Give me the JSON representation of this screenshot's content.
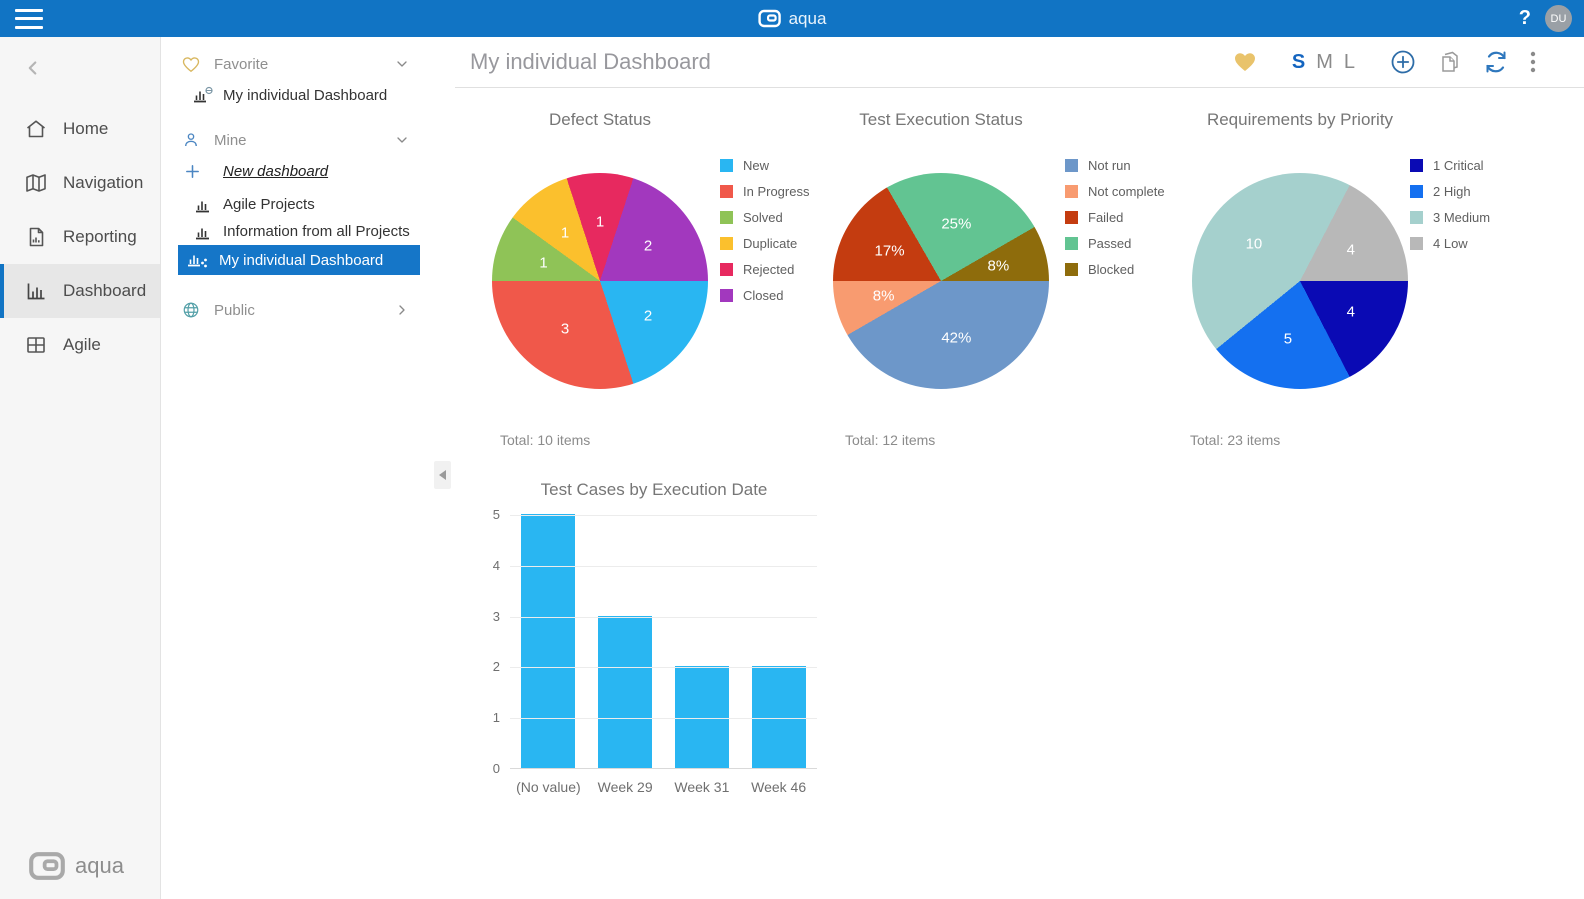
{
  "topbar": {
    "brand": "aqua",
    "help": "?",
    "avatar": "DU"
  },
  "sidebar": {
    "items": [
      {
        "label": "Home"
      },
      {
        "label": "Navigation"
      },
      {
        "label": "Reporting"
      },
      {
        "label": "Dashboard",
        "selected": true
      },
      {
        "label": "Agile"
      }
    ],
    "footer_brand": "aqua"
  },
  "panel": {
    "favorite": {
      "label": "Favorite",
      "items": [
        {
          "label": "My individual Dashboard"
        }
      ]
    },
    "mine": {
      "label": "Mine",
      "new_dashboard": "New dashboard",
      "items": [
        {
          "label": "Agile Projects"
        },
        {
          "label": "Information from all Projects"
        },
        {
          "label": "My individual Dashboard",
          "selected": true
        }
      ]
    },
    "public": {
      "label": "Public"
    }
  },
  "header": {
    "title": "My individual Dashboard",
    "sizes": [
      "S",
      "M",
      "L"
    ],
    "active_size": "S"
  },
  "colors": {
    "topbar": "#1174C4",
    "selection": "#1576C8",
    "favorite_heart": "#E9C36B",
    "bar": "#29B6F2"
  },
  "chart_data": [
    {
      "type": "pie",
      "title": "Defect Status",
      "total_label": "Total: 10 items",
      "legend_position": "right",
      "series": [
        {
          "name": "New",
          "value": 2,
          "label": "2",
          "color": "#29B6F2"
        },
        {
          "name": "In Progress",
          "value": 3,
          "label": "3",
          "color": "#F0584A"
        },
        {
          "name": "Solved",
          "value": 1,
          "label": "1",
          "color": "#8FC357"
        },
        {
          "name": "Duplicate",
          "value": 1,
          "label": "1",
          "color": "#FBC02D"
        },
        {
          "name": "Rejected",
          "value": 1,
          "label": "1",
          "color": "#E7295F"
        },
        {
          "name": "Closed",
          "value": 2,
          "label": "2",
          "color": "#A238BE"
        }
      ]
    },
    {
      "type": "pie",
      "title": "Test Execution Status",
      "total_label": "Total: 12 items",
      "legend_position": "right",
      "series": [
        {
          "name": "Not run",
          "value": 5,
          "label": "42%",
          "color": "#6D97C9"
        },
        {
          "name": "Not complete",
          "value": 1,
          "label": "8%",
          "color": "#F89B70"
        },
        {
          "name": "Failed",
          "value": 2,
          "label": "17%",
          "color": "#C43C10"
        },
        {
          "name": "Passed",
          "value": 3,
          "label": "25%",
          "color": "#62C492"
        },
        {
          "name": "Blocked",
          "value": 1,
          "label": "8%",
          "color": "#8E6C0C"
        }
      ]
    },
    {
      "type": "pie",
      "title": "Requirements by Priority",
      "total_label": "Total: 23 items",
      "legend_position": "right",
      "series": [
        {
          "name": "1 Critical",
          "value": 4,
          "label": "4",
          "color": "#0A0AB4"
        },
        {
          "name": "2 High",
          "value": 5,
          "label": "5",
          "color": "#1470F0"
        },
        {
          "name": "3 Medium",
          "value": 10,
          "label": "10",
          "color": "#A5D0CD"
        },
        {
          "name": "4 Low",
          "value": 4,
          "label": "4",
          "color": "#B8B8B8"
        }
      ]
    },
    {
      "type": "bar",
      "title": "Test Cases by Execution Date",
      "categories": [
        "(No value)",
        "Week 29",
        "Week 31",
        "Week 46"
      ],
      "values": [
        5,
        3,
        2,
        2
      ],
      "bar_color": "#29B6F2",
      "ylim": [
        0,
        5
      ],
      "yticks": [
        0,
        1,
        2,
        3,
        4,
        5
      ],
      "grid": true
    }
  ]
}
